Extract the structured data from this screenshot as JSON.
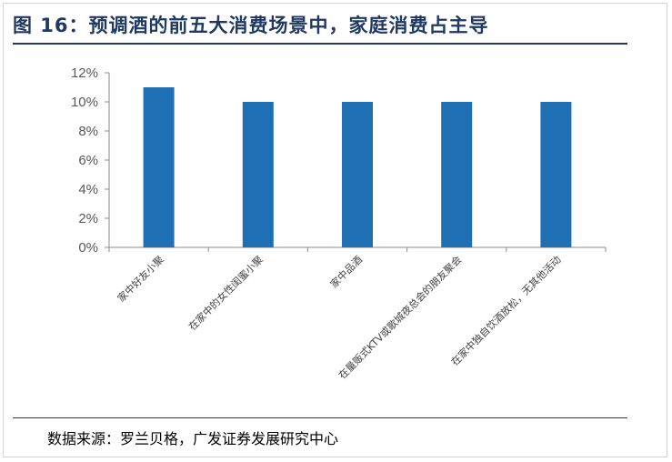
{
  "title": "图 16：预调酒的前五大消费场景中，家庭消费占主导",
  "source": "数据来源：罗兰贝格，广发证券发展研究中心",
  "colors": {
    "bar": "#1f6fb5",
    "axis": "#8c8c8c",
    "title": "#1f3864"
  },
  "chart_data": {
    "type": "bar",
    "title": "图 16：预调酒的前五大消费场景中，家庭消费占主导",
    "categories": [
      "家中好友小聚",
      "在家中的女性闺蜜小聚",
      "家中品酒",
      "在量贩式KTV或歌城夜总会的朋友聚会",
      "在家中独自饮酒放松，无其他活动"
    ],
    "values": [
      11,
      10,
      10,
      10,
      10
    ],
    "yticks": [
      "0%",
      "2%",
      "4%",
      "6%",
      "8%",
      "10%",
      "12%"
    ],
    "ylim": [
      0,
      12
    ],
    "xlabel": "",
    "ylabel": "",
    "grid": false,
    "legend": "none"
  }
}
